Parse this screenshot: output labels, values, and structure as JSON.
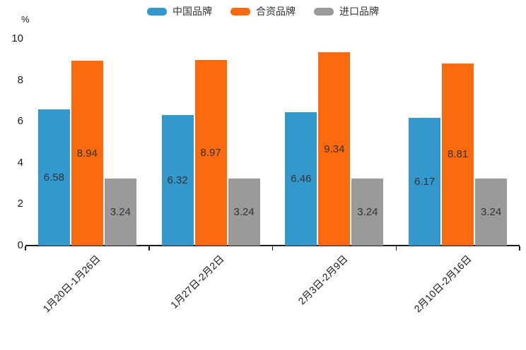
{
  "chart_data": {
    "type": "bar",
    "title": "",
    "unit_label": "%",
    "categories": [
      "1月20日-1月26日",
      "1月27日-2月2日",
      "2月3日-2月9日",
      "2月10日-2月16日"
    ],
    "series": [
      {
        "name": "中国品牌",
        "color": "#3398cc",
        "values": [
          6.58,
          6.32,
          6.46,
          6.17
        ]
      },
      {
        "name": "合资品牌",
        "color": "#fb6a0d",
        "values": [
          8.94,
          8.97,
          9.34,
          8.81
        ]
      },
      {
        "name": "进口品牌",
        "color": "#9a9a9a",
        "values": [
          3.24,
          3.24,
          3.24,
          3.24
        ]
      }
    ],
    "value_label_format": "2-decimals",
    "value_labels": "inside-center",
    "y_axis": {
      "min": 0,
      "max": 10,
      "ticks": [
        0,
        2,
        4,
        6,
        8,
        10
      ]
    },
    "x_axis": {
      "tick_style": "boundary",
      "label_rotation_deg": 45
    },
    "legend_position": "top-center",
    "grid": false,
    "colors": {
      "axis": "#1a1a1a",
      "bar_value_text": "#333333",
      "legend_text": "#333333",
      "background": "#ffffff"
    }
  }
}
